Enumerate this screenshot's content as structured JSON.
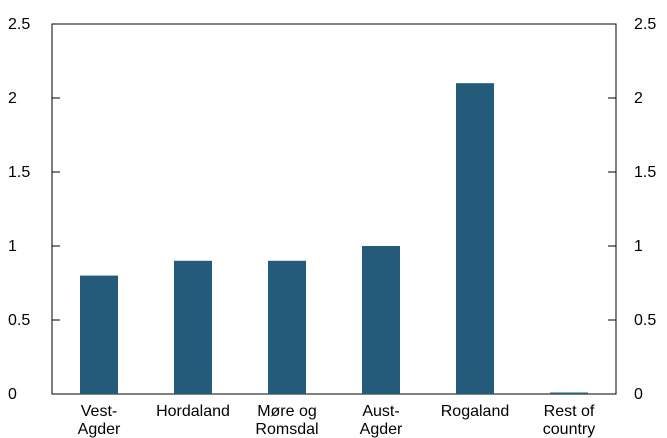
{
  "chart_data": {
    "type": "bar",
    "categories": [
      [
        "Vest-",
        "Agder"
      ],
      [
        "Hordaland"
      ],
      [
        "Møre og",
        "Romsdal"
      ],
      [
        "Aust-",
        "Agder"
      ],
      [
        "Rogaland"
      ],
      [
        "Rest of",
        "country"
      ]
    ],
    "values": [
      0.8,
      0.9,
      0.9,
      1.0,
      2.1,
      0.01
    ],
    "ylim": [
      0,
      2.5
    ],
    "yticks": [
      "0",
      "0.5",
      "1",
      "1.5",
      "2",
      "2.5"
    ],
    "ytick_values": [
      0,
      0.5,
      1,
      1.5,
      2,
      2.5
    ],
    "grid": false,
    "bar_color": "#245a7a"
  }
}
